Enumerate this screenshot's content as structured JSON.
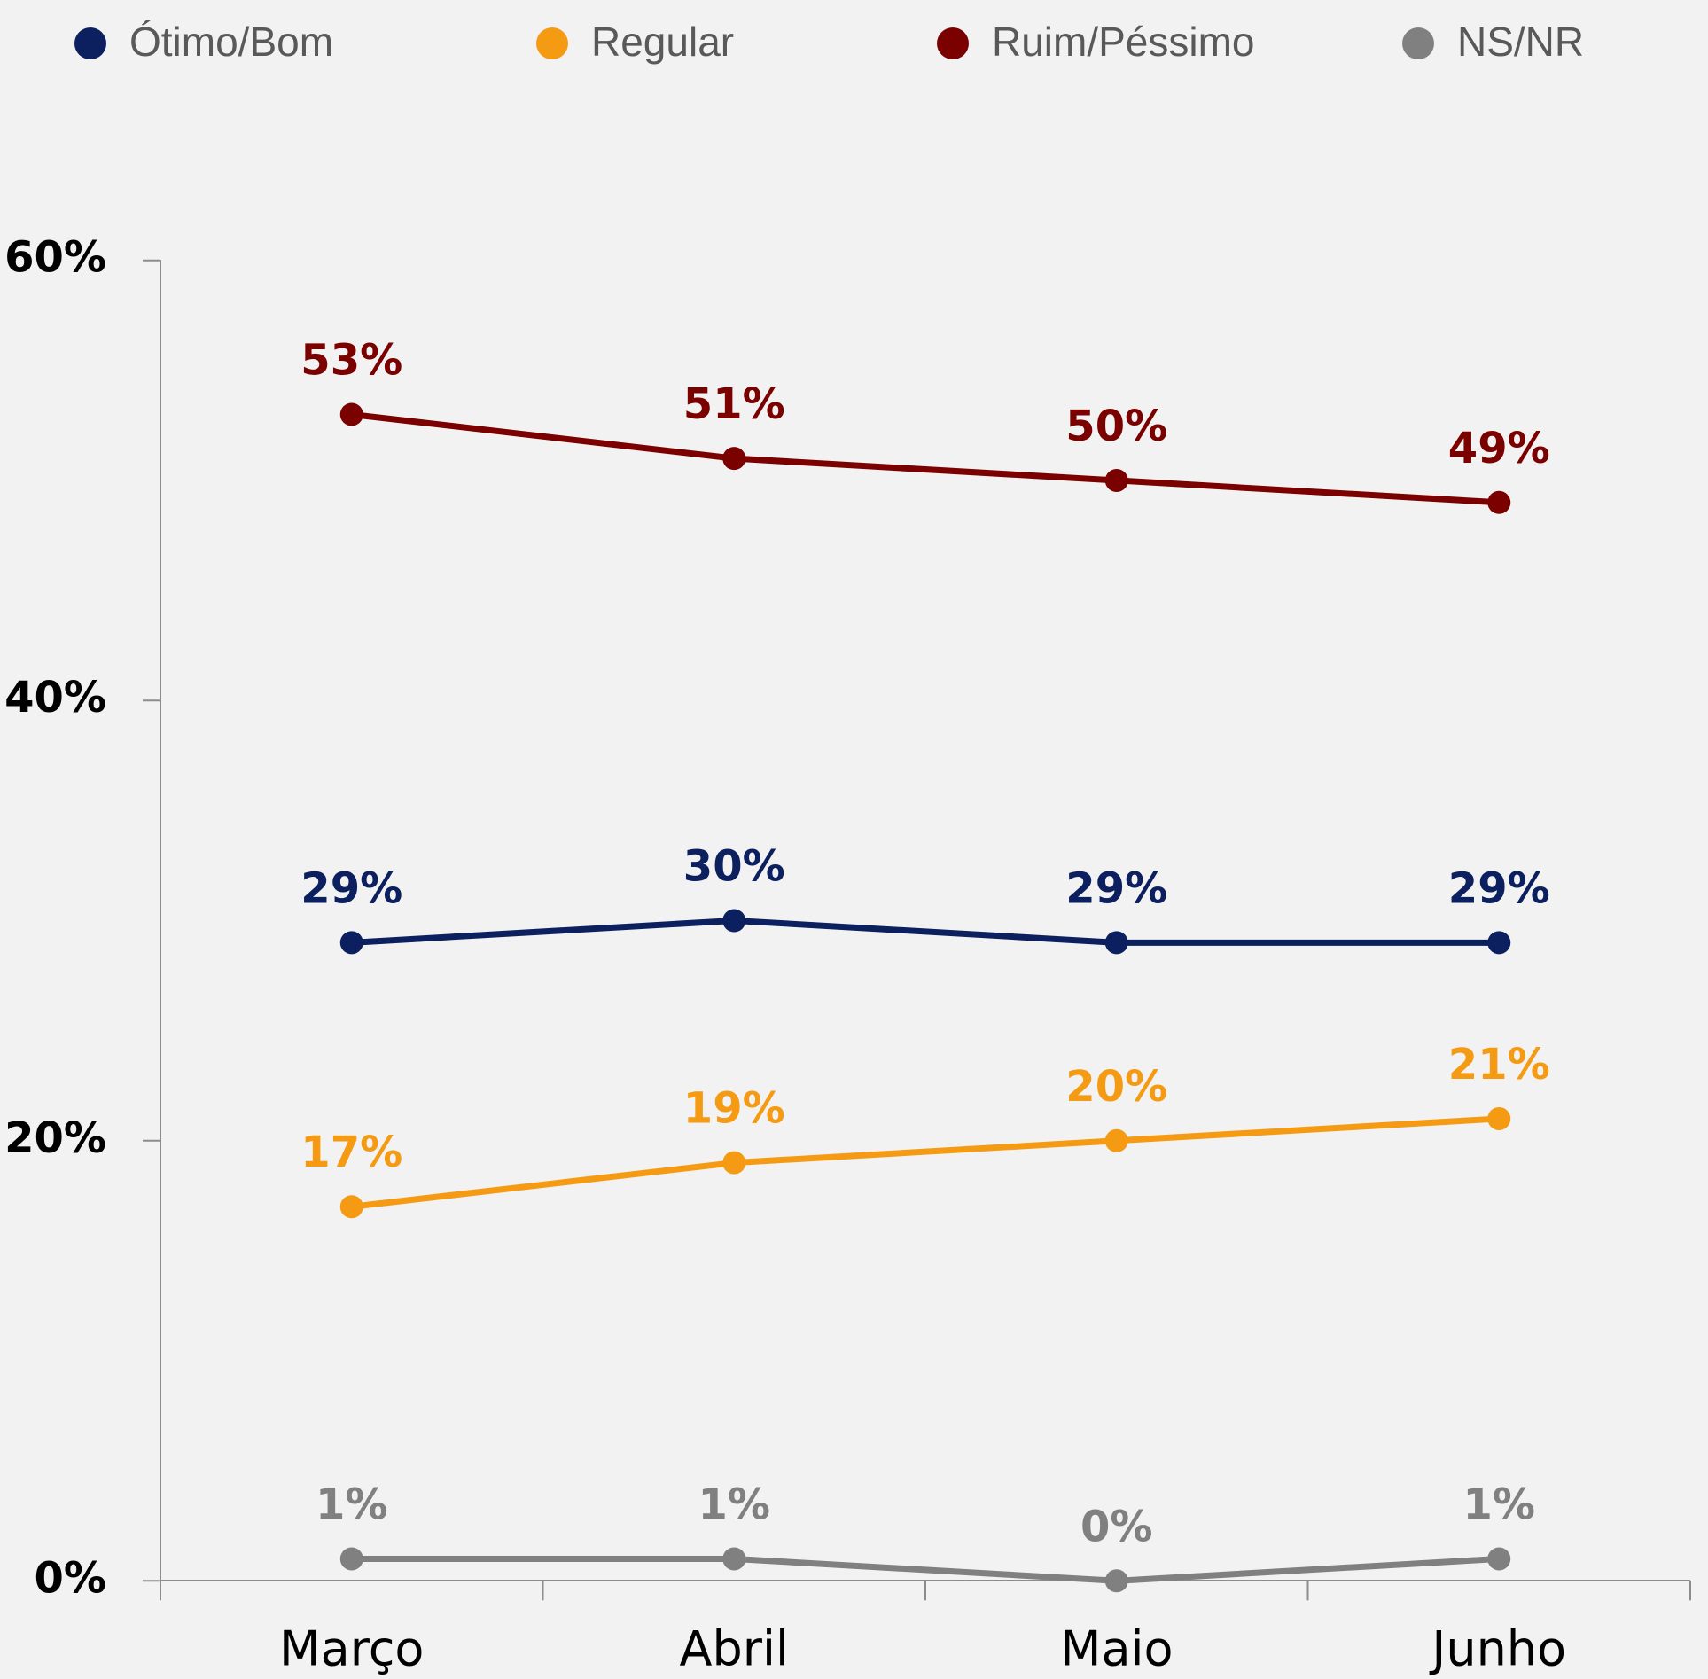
{
  "chart_data": {
    "type": "line",
    "categories": [
      "Março",
      "Abril",
      "Maio",
      "Junho"
    ],
    "series": [
      {
        "name": "Ótimo/Bom",
        "color": "#0c1f5e",
        "values": [
          29,
          30,
          29,
          29
        ],
        "value_labels": [
          "29%",
          "30%",
          "29%",
          "29%"
        ]
      },
      {
        "name": "Regular",
        "color": "#f59a13",
        "values": [
          17,
          19,
          20,
          21
        ],
        "value_labels": [
          "17%",
          "19%",
          "20%",
          "21%"
        ]
      },
      {
        "name": "Ruim/Péssimo",
        "color": "#7b0000",
        "values": [
          53,
          51,
          50,
          49
        ],
        "value_labels": [
          "53%",
          "51%",
          "50%",
          "49%"
        ]
      },
      {
        "name": "NS/NR",
        "color": "#808080",
        "values": [
          1,
          1,
          0,
          1
        ],
        "value_labels": [
          "1%",
          "1%",
          "0%",
          "1%"
        ]
      }
    ],
    "ylim": [
      0,
      60
    ],
    "yticks": [
      {
        "value": 0,
        "label": "0%"
      },
      {
        "value": 20,
        "label": "20%"
      },
      {
        "value": 40,
        "label": "40%"
      },
      {
        "value": 60,
        "label": "60%"
      }
    ],
    "grid": false,
    "legend": "top"
  }
}
